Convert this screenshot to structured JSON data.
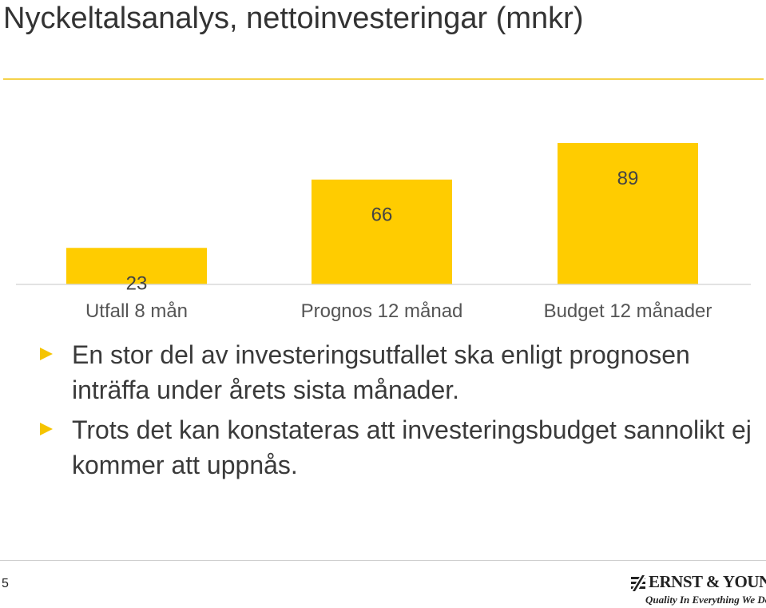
{
  "slide": {
    "title": "Nyckeltalsanalys, nettoinvesteringar (mnkr)",
    "page_number": "5"
  },
  "colors": {
    "accent": "#FFCC00",
    "rule": "#F5D24A",
    "text": "#333333"
  },
  "chart_data": {
    "type": "bar",
    "title": "",
    "xlabel": "",
    "ylabel": "",
    "categories": [
      "Utfall 8 mån",
      "Prognos 12 månad",
      "Budget 12 månader"
    ],
    "values": [
      23,
      66,
      89
    ],
    "data_labels": [
      "23",
      "66",
      "89"
    ],
    "ylim": [
      0,
      89
    ],
    "grid": false,
    "legend": "none"
  },
  "bullets": [
    "En stor del av investeringsutfallet ska enligt prognosen inträffa under årets sista månader.",
    "Trots det kan konstateras att investeringsbudget sannolikt ej kommer att uppnås."
  ],
  "logo": {
    "name": "ERNST & YOUNG",
    "tagline": "Quality In Everything We Do",
    "icon": "ernst-young-logo-icon"
  }
}
